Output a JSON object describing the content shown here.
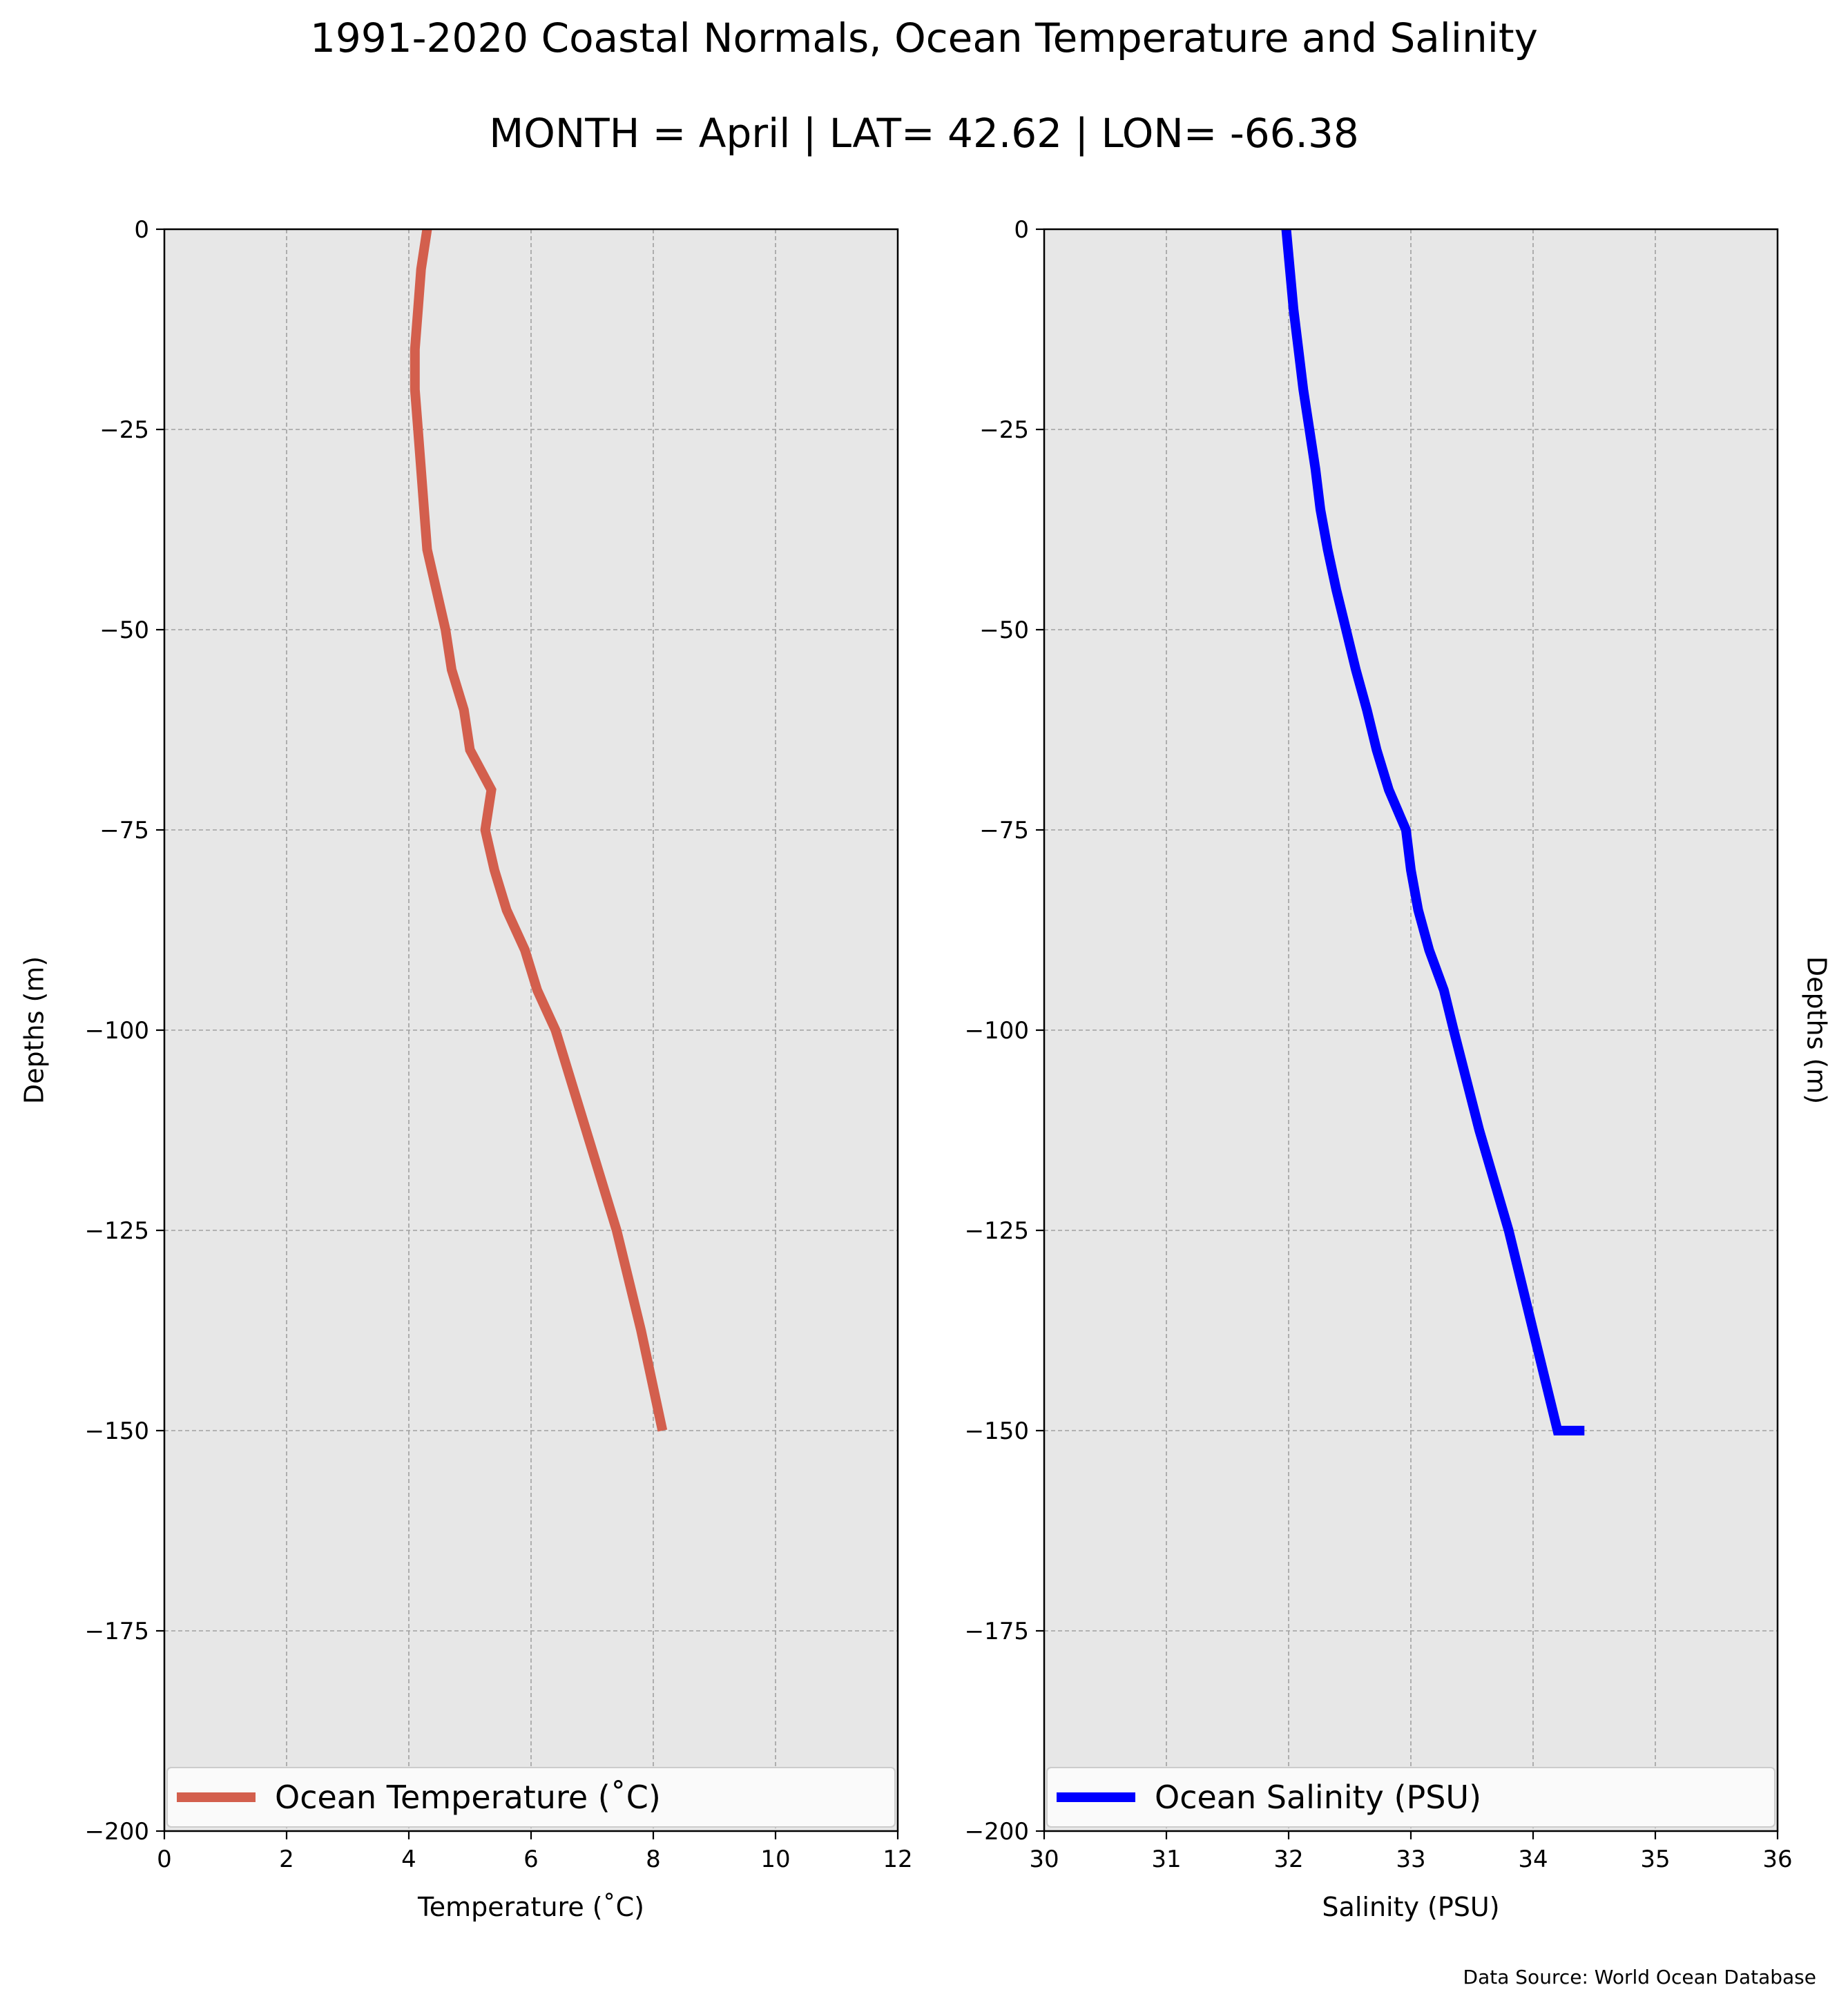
{
  "title": "1991-2020 Coastal Normals, Ocean Temperature and Salinity",
  "subtitle": "MONTH = April | LAT= 42.62 | LON= -66.38",
  "source": "Data Source: World Ocean Database",
  "chart_data": [
    {
      "type": "line",
      "xlabel": "Temperature (˚C)",
      "ylabel": "Depths (m)",
      "ylabel_side": "left",
      "xlim": [
        0,
        12
      ],
      "ylim": [
        -200,
        0
      ],
      "xticks": [
        0,
        2,
        4,
        6,
        8,
        10,
        12
      ],
      "yticks": [
        0,
        -25,
        -50,
        -75,
        -100,
        -125,
        -150,
        -175,
        -200
      ],
      "grid": true,
      "legend_placement": "bottom",
      "color": "#d35f4d",
      "series": [
        {
          "name": "Ocean Temperature (˚C)",
          "x": [
            4.3,
            4.2,
            4.15,
            4.1,
            4.1,
            4.15,
            4.2,
            4.25,
            4.3,
            4.45,
            4.6,
            4.7,
            4.9,
            5.0,
            5.35,
            5.25,
            5.4,
            5.6,
            5.9,
            6.1,
            6.4,
            6.9,
            7.4,
            7.8,
            8.15
          ],
          "y": [
            0,
            -5,
            -10,
            -15,
            -20,
            -25,
            -30,
            -35,
            -40,
            -45,
            -50,
            -55,
            -60,
            -65,
            -70,
            -75,
            -80,
            -85,
            -90,
            -95,
            -100,
            -112.5,
            -125,
            -137.5,
            -150
          ]
        }
      ]
    },
    {
      "type": "line",
      "xlabel": "Salinity (PSU)",
      "ylabel": "Depths (m)",
      "ylabel_side": "right",
      "xlim": [
        30,
        36
      ],
      "ylim": [
        -200,
        0
      ],
      "xticks": [
        30,
        31,
        32,
        33,
        34,
        35,
        36
      ],
      "yticks": [
        0,
        -25,
        -50,
        -75,
        -100,
        -125,
        -150,
        -175,
        -200
      ],
      "grid": true,
      "legend_placement": "bottom",
      "color": "#0000ff",
      "series": [
        {
          "name": "Ocean Salinity (PSU)",
          "x": [
            31.98,
            32.01,
            32.04,
            32.08,
            32.12,
            32.17,
            32.22,
            32.26,
            32.32,
            32.39,
            32.47,
            32.55,
            32.64,
            32.72,
            32.82,
            32.96,
            33.0,
            33.06,
            33.15,
            33.27,
            33.35,
            33.56,
            33.8,
            34.0,
            34.2,
            34.42
          ],
          "y": [
            0,
            -5,
            -10,
            -15,
            -20,
            -25,
            -30,
            -35,
            -40,
            -45,
            -50,
            -55,
            -60,
            -65,
            -70,
            -75,
            -80,
            -85,
            -90,
            -95,
            -100,
            -112.5,
            -125,
            -137.5,
            -150,
            -150
          ]
        }
      ]
    }
  ]
}
